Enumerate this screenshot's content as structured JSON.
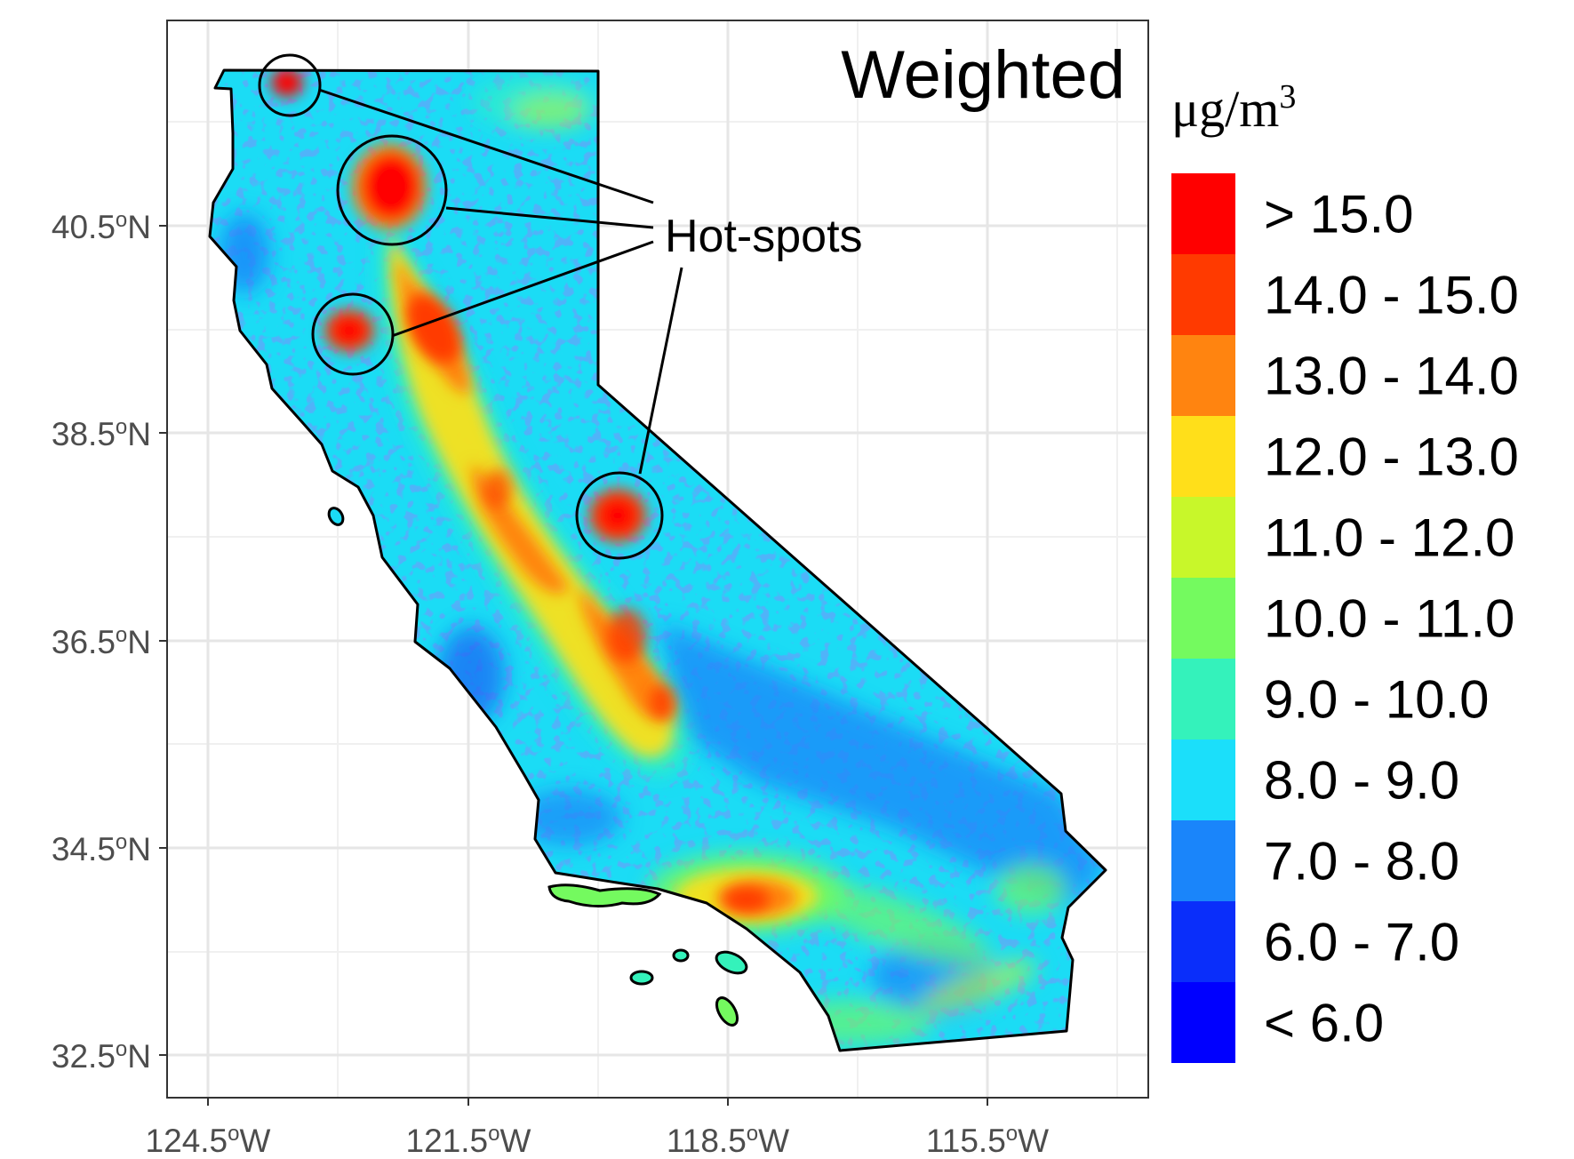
{
  "title": "Weighted",
  "annotation": "Hot-spots",
  "legend": {
    "unit": "μg/m",
    "unit_superscript": "3",
    "items": [
      {
        "label": "> 15.0",
        "color": "#FF0000"
      },
      {
        "label": "14.0 - 15.0",
        "color": "#FF3A00"
      },
      {
        "label": "13.0 - 14.0",
        "color": "#FF8410"
      },
      {
        "label": "12.0 - 13.0",
        "color": "#FFDF1A"
      },
      {
        "label": "11.0 - 12.0",
        "color": "#C8F72A"
      },
      {
        "label": "10.0 - 11.0",
        "color": "#74FA5F"
      },
      {
        "label": "9.0 - 10.0",
        "color": "#34F2BB"
      },
      {
        "label": "8.0 - 9.0",
        "color": "#1BDFFA"
      },
      {
        "label": "7.0 - 8.0",
        "color": "#1A85FA"
      },
      {
        "label": "6.0 - 7.0",
        "color": "#0A2EFA"
      },
      {
        "label": "< 6.0",
        "color": "#0000FF"
      }
    ]
  },
  "axes": {
    "x_ticks": [
      {
        "num": "124.5",
        "sup": "o",
        "dir": "W"
      },
      {
        "num": "121.5",
        "sup": "o",
        "dir": "W"
      },
      {
        "num": "118.5",
        "sup": "o",
        "dir": "W"
      },
      {
        "num": "115.5",
        "sup": "o",
        "dir": "W"
      }
    ],
    "y_ticks": [
      {
        "num": "40.5",
        "sup": "o",
        "dir": "N"
      },
      {
        "num": "38.5",
        "sup": "o",
        "dir": "N"
      },
      {
        "num": "36.5",
        "sup": "o",
        "dir": "N"
      },
      {
        "num": "34.5",
        "sup": "o",
        "dir": "N"
      },
      {
        "num": "32.5",
        "sup": "o",
        "dir": "N"
      }
    ]
  }
}
